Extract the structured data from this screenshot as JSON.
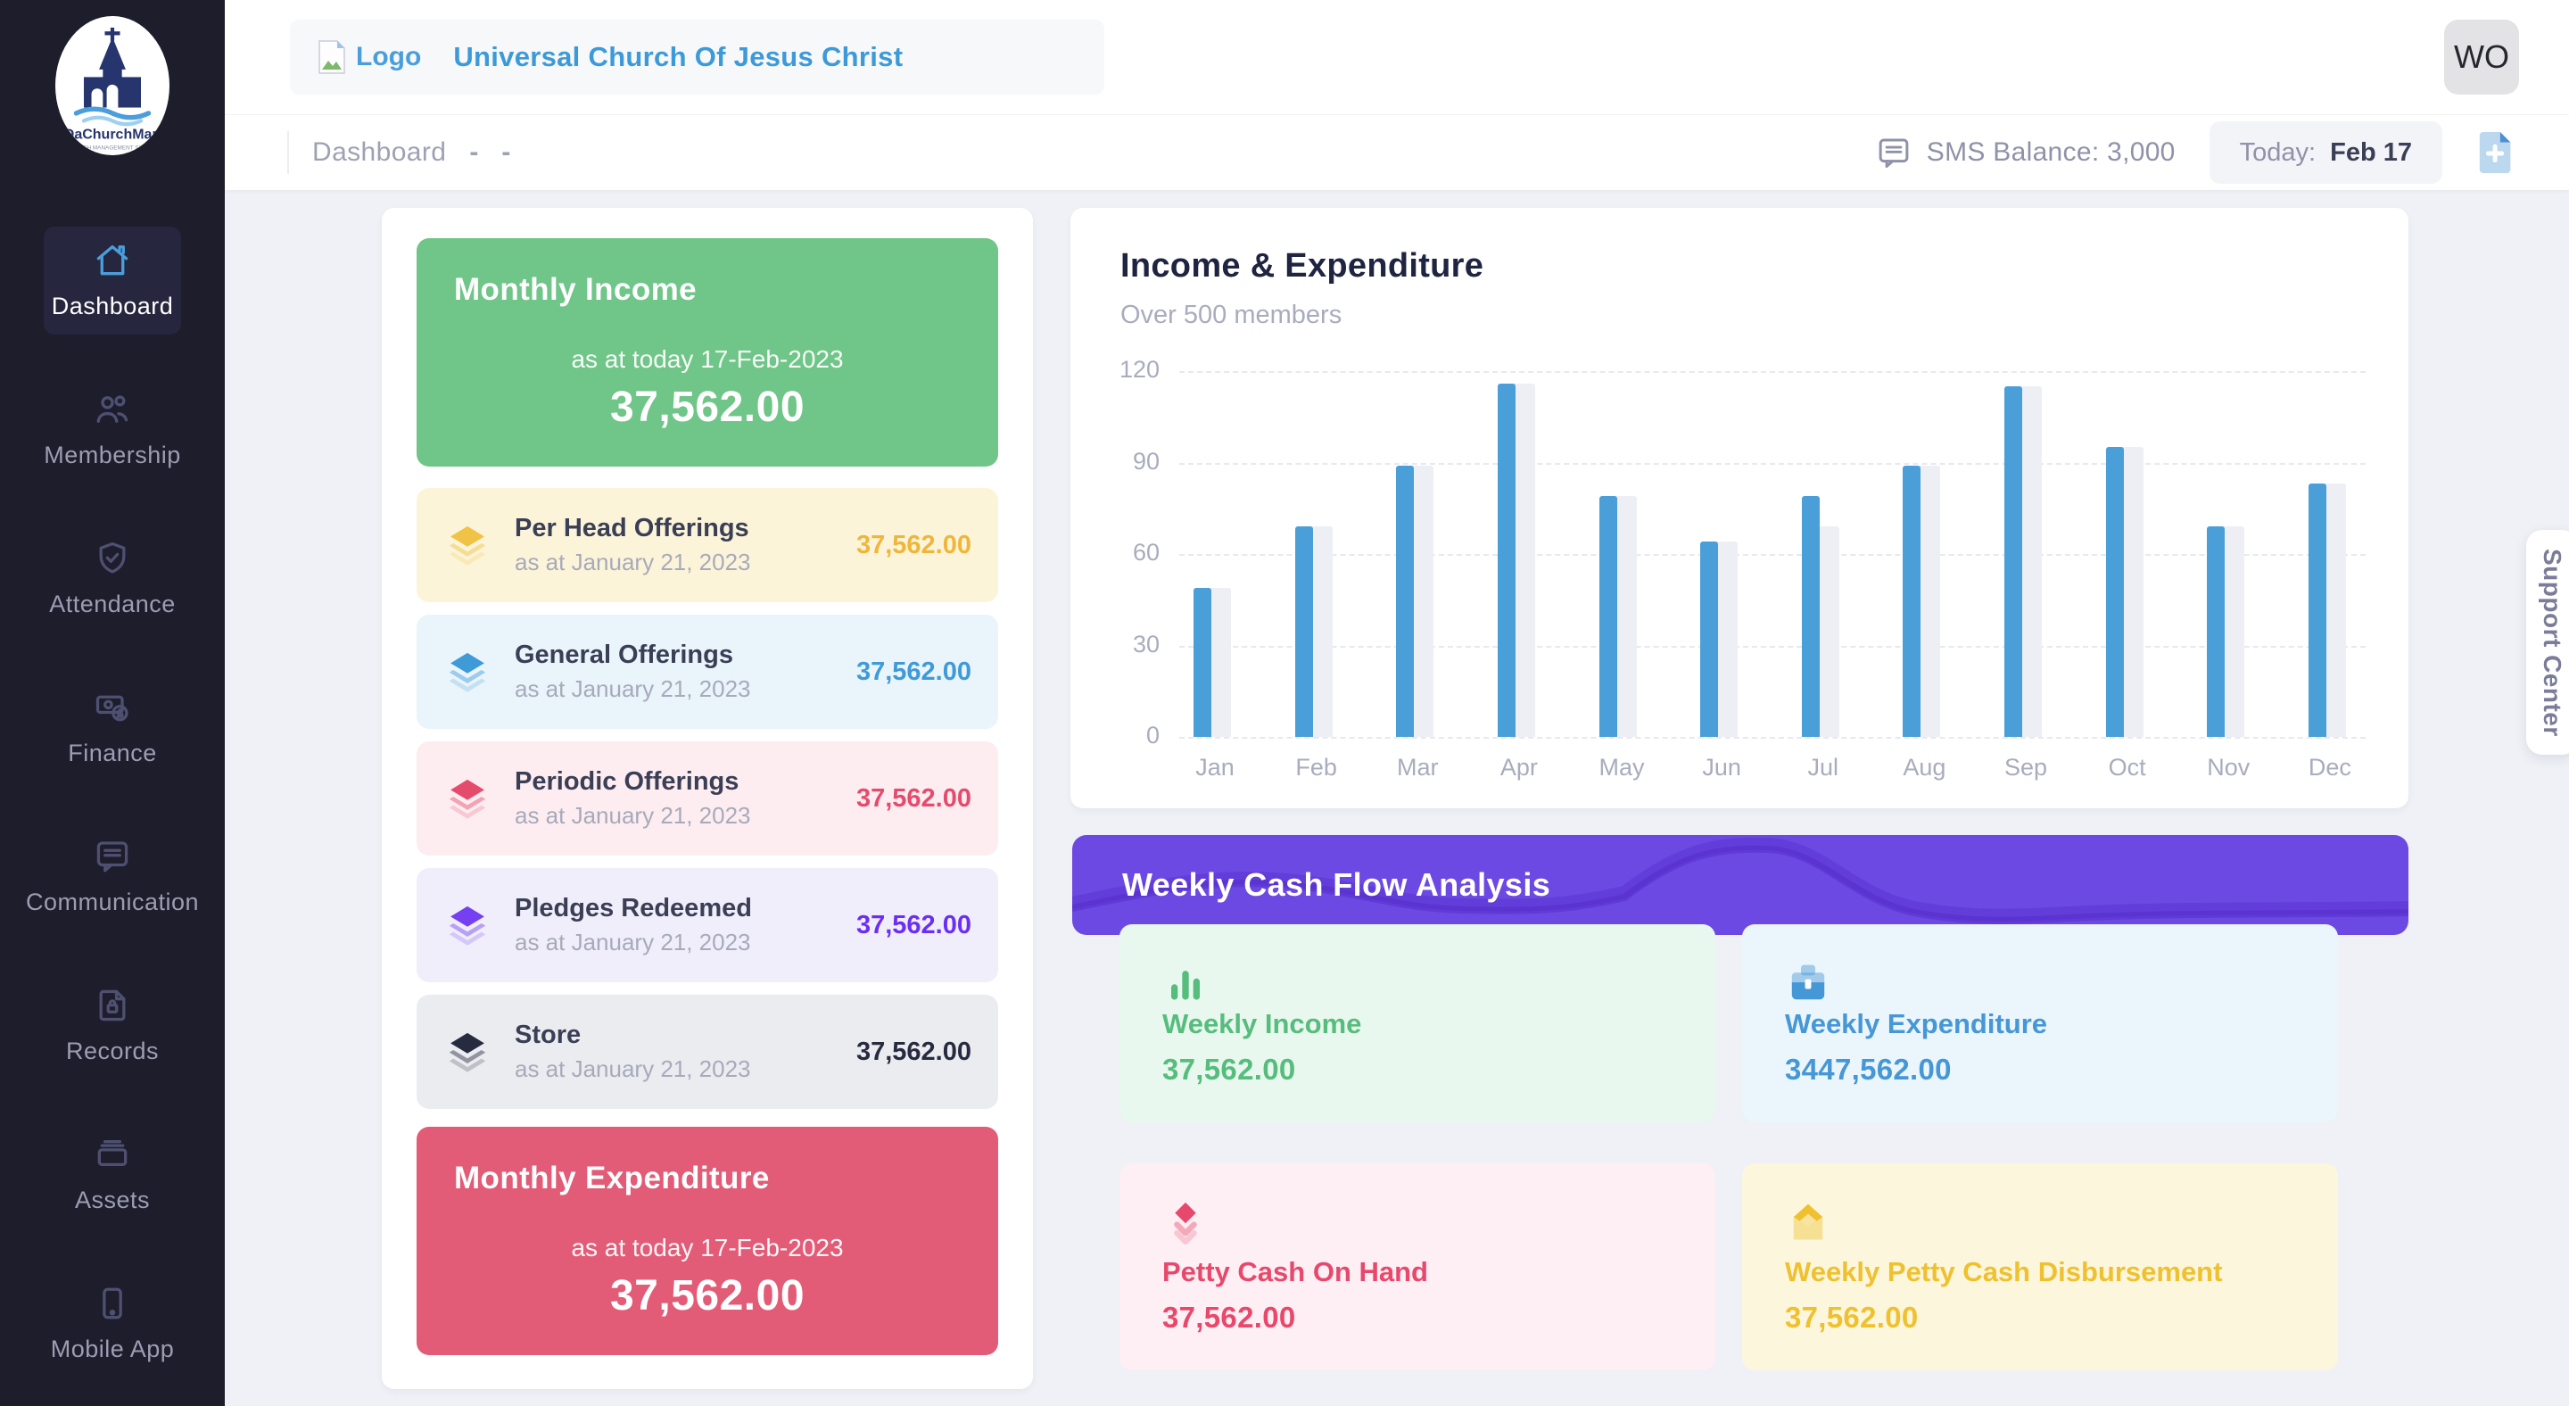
{
  "header": {
    "logo_alt": "Logo",
    "church_name": "Universal Church Of Jesus Christ",
    "avatar_initials": "WO"
  },
  "brand": {
    "name": "DaChurchMan",
    "tagline": "CHURCH MANAGEMENT SYSTEM"
  },
  "sidebar": {
    "items": [
      {
        "label": "Dashboard",
        "icon": "home",
        "active": true
      },
      {
        "label": "Membership",
        "icon": "users",
        "active": false
      },
      {
        "label": "Attendance",
        "icon": "shield-check",
        "active": false
      },
      {
        "label": "Finance",
        "icon": "cash",
        "active": false
      },
      {
        "label": "Communication",
        "icon": "chat",
        "active": false
      },
      {
        "label": "Records",
        "icon": "document-lock",
        "active": false
      },
      {
        "label": "Assets",
        "icon": "archive",
        "active": false
      },
      {
        "label": "Mobile App",
        "icon": "phone",
        "active": false
      }
    ]
  },
  "topbar": {
    "breadcrumb": "Dashboard",
    "dashes": [
      "-",
      "-"
    ],
    "sms_balance": "SMS Balance: 3,000",
    "today_label": "Today:",
    "today_value": "Feb 17"
  },
  "summary": {
    "monthly_income": {
      "title": "Monthly Income",
      "as_at": "as at today 17-Feb-2023",
      "amount": "37,562.00",
      "bg": "#70C588"
    },
    "monthly_expenditure": {
      "title": "Monthly Expenditure",
      "as_at": "as at today 17-Feb-2023",
      "amount": "37,562.00",
      "bg": "#E25C77"
    },
    "items": [
      {
        "title": "Per Head Offerings",
        "sub": "as at January 21, 2023",
        "amount": "37,562.00",
        "icon": "layers",
        "color": "#EFB73A",
        "icon_color": "#F0C245",
        "bg": "#FCF4D9"
      },
      {
        "title": "General Offerings",
        "sub": "as at January 21, 2023",
        "amount": "37,562.00",
        "icon": "layers",
        "color": "#3F9AD8",
        "icon_color": "#3F9AD8",
        "bg": "#E9F4FB"
      },
      {
        "title": "Periodic Offerings",
        "sub": "as at January 21, 2023",
        "amount": "37,562.00",
        "icon": "layers",
        "color": "#E54B6D",
        "icon_color": "#E54B6D",
        "bg": "#FDEDF1"
      },
      {
        "title": "Pledges Redeemed",
        "sub": "as at January 21, 2023",
        "amount": "37,562.00",
        "icon": "layers",
        "color": "#6B2EF5",
        "icon_color": "#7440F2",
        "bg": "#F0EEFB"
      },
      {
        "title": "Store",
        "sub": "as at January 21, 2023",
        "amount": "37,562.00",
        "icon": "layers",
        "color": "#262B40",
        "icon_color": "#262B40",
        "bg": "#EBECF0"
      }
    ]
  },
  "chart_data": {
    "type": "bar",
    "title": "Income & Expenditure",
    "subtitle": "Over 500 members",
    "categories": [
      "Jan",
      "Feb",
      "Mar",
      "Apr",
      "May",
      "Jun",
      "Jul",
      "Aug",
      "Sep",
      "Oct",
      "Nov",
      "Dec"
    ],
    "series": [
      {
        "name": "Income",
        "color": "#4A9FD8",
        "values": [
          49,
          69,
          89,
          116,
          79,
          64,
          79,
          89,
          115,
          95,
          69,
          83
        ]
      },
      {
        "name": "Expenditure",
        "color": "#EDEFF4",
        "values": [
          49,
          69,
          89,
          116,
          79,
          64,
          69,
          89,
          115,
          95,
          69,
          83
        ]
      }
    ],
    "ylim": [
      0,
      120
    ],
    "yticks": [
      0,
      30,
      60,
      90,
      120
    ],
    "grid": "dashed-horizontal",
    "legend": "none"
  },
  "weekly": {
    "banner_title": "Weekly Cash Flow Analysis",
    "banner_color": "#6C49E2",
    "cards": [
      {
        "title": "Weekly Income",
        "amount": "37,562.00",
        "icon": "bar-chart",
        "color": "#56BD7D",
        "bg": "#E9F8EF"
      },
      {
        "title": "Weekly Expenditure",
        "amount": "3447,562.00",
        "icon": "briefcase",
        "color": "#4697D6",
        "bg": "#EBF5FC"
      },
      {
        "title": "Petty Cash On Hand",
        "amount": "37,562.00",
        "icon": "layers-down",
        "color": "#E8486B",
        "bg": "#FDEFF4"
      },
      {
        "title": "Weekly Petty Cash Disbursement",
        "amount": "37,562.00",
        "icon": "envelope-open",
        "color": "#EFC12F",
        "bg": "#FCF6DC"
      }
    ]
  },
  "support_tab": {
    "label": "Support Center"
  }
}
